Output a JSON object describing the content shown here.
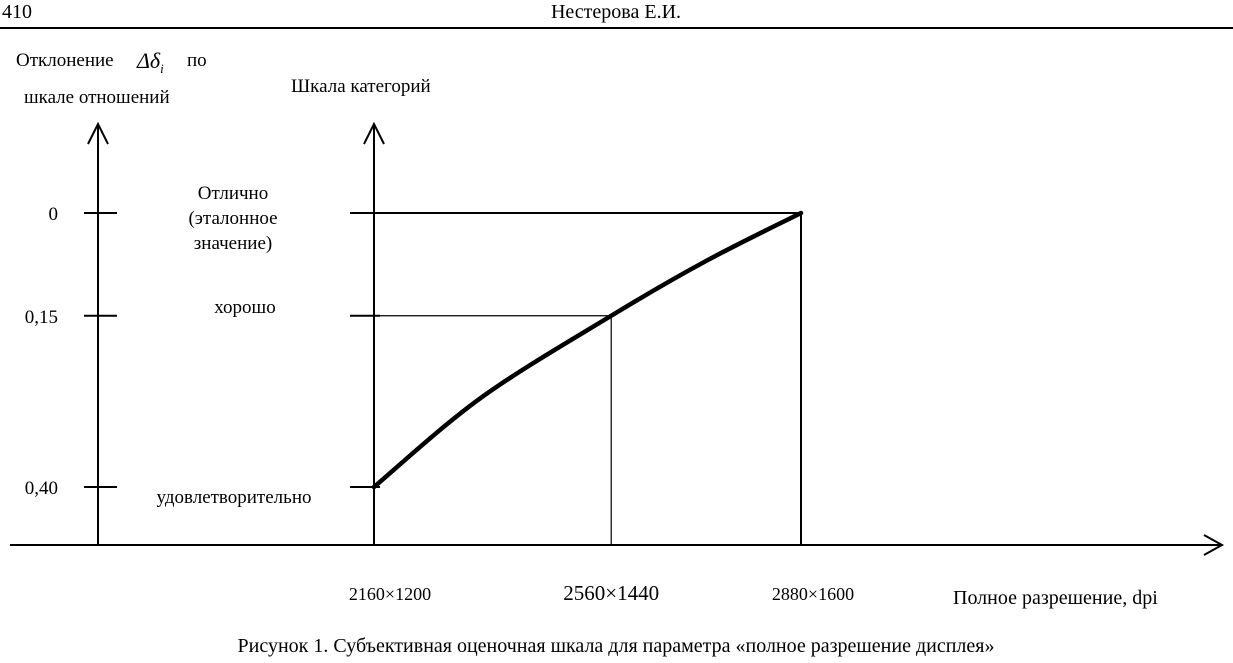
{
  "header": {
    "page_number": "410",
    "author": "Нестерова Е.И."
  },
  "caption": "Рисунок 1. Субъективная оценочная шкала для параметра «полное разрешение дисплея»",
  "colors": {
    "line": "#000000",
    "background": "#ffffff"
  },
  "chart_data": {
    "type": "line",
    "left_axis_label": [
      "Отклонение",
      "по",
      "шкале отношений"
    ],
    "left_axis_symbol": "Δδ",
    "left_axis_symbol_subscript": "i",
    "category_axis_label": "Шкала категорий",
    "xlabel": "Полное разрешение, dpi",
    "y_ticks": [
      "0",
      "0,15",
      "0,40"
    ],
    "y_tick_values": [
      0,
      0.15,
      0.4
    ],
    "categories": [
      {
        "lines": [
          "Отлично",
          "(эталонное",
          "значение)"
        ],
        "value": 0
      },
      {
        "lines": [
          "хорошо"
        ],
        "value": 0.15
      },
      {
        "lines": [
          "удовлетворительно"
        ],
        "value": 0.4
      }
    ],
    "x_ticks": [
      "2160×1200",
      "2560×1440",
      "2880×1600"
    ],
    "x_tick_values": [
      2160,
      2560,
      2880
    ],
    "series": [
      {
        "x": [
          2160,
          2340,
          2560,
          2720,
          2880
        ],
        "y": [
          0.4,
          0.27,
          0.15,
          0.07,
          0
        ]
      }
    ],
    "reference_lines": [
      {
        "x": 2560,
        "y": 0.15
      },
      {
        "x": 2880,
        "y": 0
      }
    ],
    "y_reversed": true,
    "grid": false
  }
}
